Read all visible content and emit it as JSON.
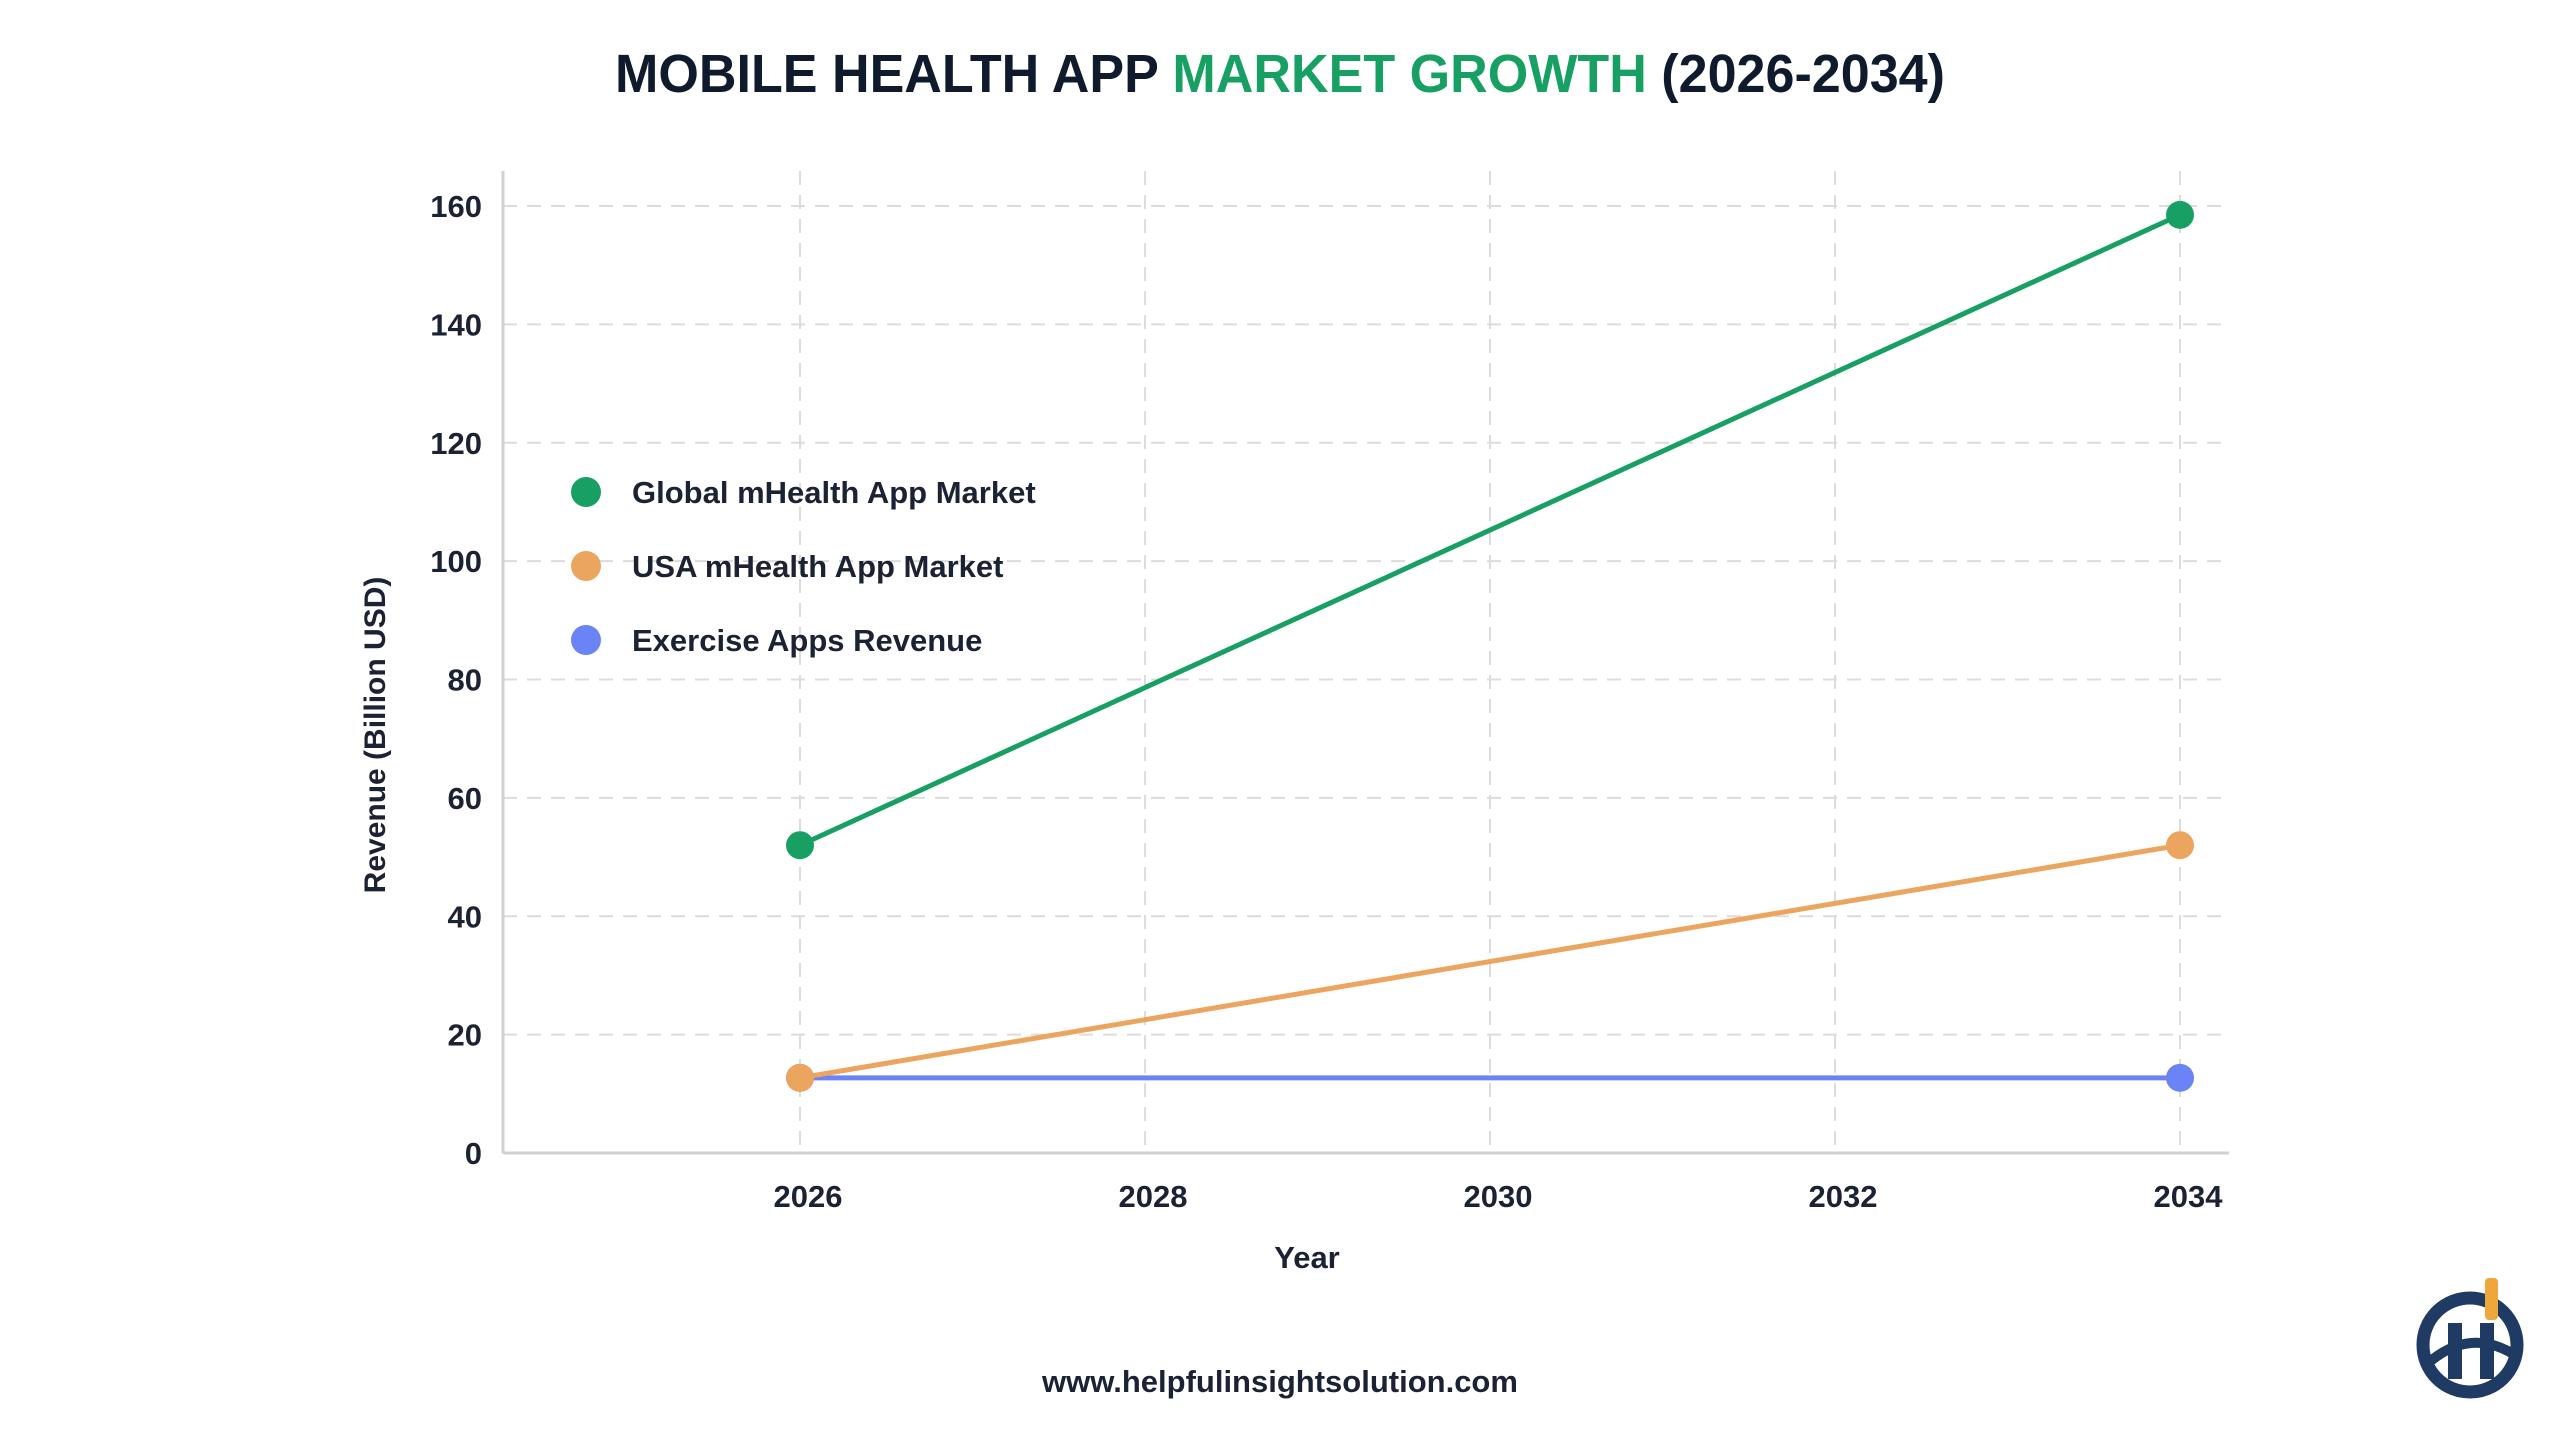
{
  "chart_data": {
    "type": "line",
    "title": {
      "part1": "MOBILE HEALTH APP ",
      "part2": "MARKET GROWTH",
      "part3": " (2026-2034)",
      "accent_color": "#18a064",
      "color": "#0f1b2d"
    },
    "xlabel": "Year",
    "ylabel": "Revenue (Billion USD)",
    "x": [
      2026,
      2034
    ],
    "xticks": [
      2026,
      2028,
      2030,
      2032,
      2034
    ],
    "yticks": [
      0,
      20,
      40,
      60,
      80,
      100,
      120,
      140,
      160
    ],
    "xlim": [
      2025.3,
      2034.3
    ],
    "ylim": [
      0,
      162
    ],
    "grid": true,
    "legend_position": "upper-left",
    "series": [
      {
        "name": "Global mHealth App Market",
        "color": "#18a064",
        "values": [
          52,
          158.5
        ]
      },
      {
        "name": "USA mHealth App Market",
        "color": "#eba55e",
        "values": [
          12.7,
          52
        ]
      },
      {
        "name": "Exercise Apps Revenue",
        "color": "#6b84f5",
        "values": [
          12.7,
          12.7
        ]
      }
    ]
  },
  "footer": {
    "url": "www.helpfulinsightsolution.com"
  },
  "logo": {
    "text": "Hi",
    "colors": [
      "#1f3a63",
      "#efa73c"
    ]
  }
}
